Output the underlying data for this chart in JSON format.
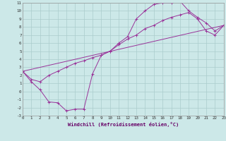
{
  "title": "",
  "xlabel": "Windchill (Refroidissement éolien,°C)",
  "background_color": "#cce8e8",
  "grid_color": "#aacccc",
  "line_color": "#993399",
  "xmin": 0,
  "xmax": 23,
  "ymin": -3,
  "ymax": 11,
  "line1_x": [
    0,
    1,
    2,
    3,
    4,
    5,
    6,
    7,
    8,
    9,
    10,
    11,
    12,
    13,
    14,
    15,
    16,
    17,
    18,
    19,
    20,
    21,
    22,
    23
  ],
  "line1_y": [
    2.5,
    1.2,
    0.2,
    -1.3,
    -1.4,
    -2.4,
    -2.2,
    -2.2,
    2.2,
    4.5,
    5.0,
    6.0,
    6.8,
    9.0,
    10.0,
    10.8,
    11.0,
    11.0,
    11.2,
    10.0,
    9.2,
    8.5,
    7.5,
    8.2
  ],
  "line2_x": [
    0,
    1,
    2,
    3,
    4,
    5,
    6,
    7,
    8,
    9,
    10,
    11,
    12,
    13,
    14,
    15,
    16,
    17,
    18,
    19,
    20,
    21,
    22,
    23
  ],
  "line2_y": [
    2.5,
    1.5,
    1.2,
    2.0,
    2.5,
    3.0,
    3.5,
    3.8,
    4.2,
    4.5,
    5.0,
    5.8,
    6.5,
    7.0,
    7.8,
    8.2,
    8.8,
    9.2,
    9.5,
    9.8,
    9.0,
    7.5,
    7.0,
    8.2
  ],
  "line3_x": [
    0,
    23
  ],
  "line3_y": [
    2.5,
    8.2
  ]
}
